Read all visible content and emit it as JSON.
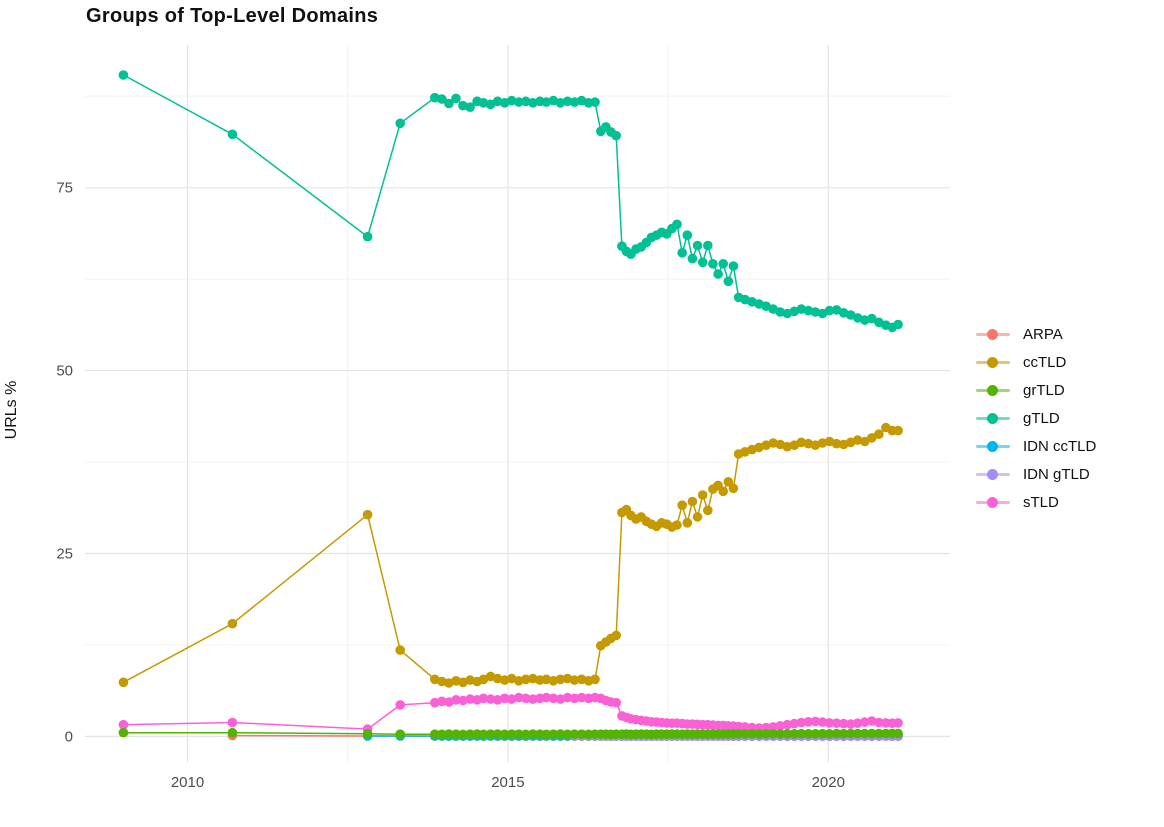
{
  "chart_data": {
    "type": "line",
    "title": "Groups of Top-Level Domains",
    "xlabel": "",
    "ylabel": "URLs %",
    "xlim": [
      2008.4,
      2021.9
    ],
    "ylim": [
      -3.5,
      94.5
    ],
    "x_tick_values": [
      2010,
      2015,
      2020
    ],
    "x_tick_labels": [
      "2010",
      "2015",
      "2020"
    ],
    "x_minor_gridlines": [
      2012.5,
      2017.5
    ],
    "y_tick_values": [
      0,
      25,
      50,
      75
    ],
    "y_tick_labels": [
      "0",
      "25",
      "50",
      "75"
    ],
    "y_minor_gridlines": [
      12.5,
      37.5,
      62.5,
      87.5
    ],
    "grid": "major+minor",
    "legend_position": "right",
    "axis_text_color": "#4d4d4d",
    "major_grid_color": "#e4e4e4",
    "minor_grid_color": "#f0f0f0",
    "x_dense": [
      2013.86,
      2013.97,
      2014.08,
      2014.19,
      2014.3,
      2014.41,
      2014.52,
      2014.62,
      2014.73,
      2014.84,
      2014.95,
      2015.06,
      2015.17,
      2015.28,
      2015.39,
      2015.5,
      2015.6,
      2015.71,
      2015.82,
      2015.93,
      2016.04,
      2016.15,
      2016.26,
      2016.36,
      2016.45,
      2016.53,
      2016.61,
      2016.69,
      2016.78,
      2016.85,
      2016.92,
      2017.0,
      2017.08,
      2017.16,
      2017.24,
      2017.32,
      2017.4,
      2017.48,
      2017.56,
      2017.64,
      2017.72,
      2017.8,
      2017.88,
      2017.96,
      2018.04,
      2018.12,
      2018.2,
      2018.28,
      2018.36,
      2018.44,
      2018.52,
      2018.6,
      2018.7,
      2018.81,
      2018.92,
      2019.03,
      2019.14,
      2019.25,
      2019.36,
      2019.47,
      2019.58,
      2019.69,
      2019.8,
      2019.91,
      2020.02,
      2020.13,
      2020.24,
      2020.35,
      2020.46,
      2020.57,
      2020.68,
      2020.79,
      2020.9,
      2021.0,
      2021.09
    ],
    "series": [
      {
        "name": "ARPA",
        "color": "#F8766D",
        "zorder": 1,
        "points_early": [
          [
            2010.7,
            0.12
          ],
          [
            2012.81,
            0.05
          ],
          [
            2013.32,
            0.04
          ]
        ],
        "y_dense": 0.03
      },
      {
        "name": "ccTLD",
        "color": "#C49A00",
        "zorder": 4,
        "points_early": [
          [
            2009.0,
            7.4
          ],
          [
            2010.7,
            15.4
          ],
          [
            2012.81,
            30.3
          ],
          [
            2013.32,
            11.8
          ]
        ],
        "y_dense": [
          7.8,
          7.5,
          7.3,
          7.6,
          7.4,
          7.7,
          7.5,
          7.8,
          8.2,
          7.9,
          7.7,
          7.9,
          7.6,
          7.8,
          7.9,
          7.7,
          7.8,
          7.6,
          7.8,
          7.9,
          7.7,
          7.8,
          7.6,
          7.8,
          12.4,
          12.9,
          13.4,
          13.8,
          30.6,
          31.0,
          30.2,
          29.7,
          30.0,
          29.4,
          29.0,
          28.7,
          29.2,
          29.0,
          28.6,
          28.9,
          31.6,
          29.2,
          32.1,
          30.0,
          33.0,
          30.9,
          33.8,
          34.3,
          33.5,
          34.8,
          33.9,
          38.6,
          38.9,
          39.2,
          39.5,
          39.8,
          40.1,
          39.9,
          39.6,
          39.8,
          40.2,
          40.0,
          39.8,
          40.1,
          40.3,
          40.0,
          39.9,
          40.2,
          40.5,
          40.3,
          40.8,
          41.3,
          42.2,
          41.8,
          41.8
        ]
      },
      {
        "name": "grTLD",
        "color": "#53B400",
        "zorder": 7,
        "points_early": [
          [
            2009.0,
            0.5
          ],
          [
            2010.7,
            0.5
          ],
          [
            2012.81,
            0.35
          ],
          [
            2013.32,
            0.3
          ]
        ],
        "y_dense": [
          0.3,
          0.28,
          0.32,
          0.3,
          0.27,
          0.3,
          0.32,
          0.29,
          0.3,
          0.31,
          0.28,
          0.3,
          0.3,
          0.29,
          0.31,
          0.3,
          0.28,
          0.3,
          0.31,
          0.29,
          0.3,
          0.3,
          0.29,
          0.3,
          0.3,
          0.3,
          0.29,
          0.3,
          0.3,
          0.31,
          0.29,
          0.3,
          0.32,
          0.3,
          0.29,
          0.31,
          0.3,
          0.3,
          0.32,
          0.31,
          0.3,
          0.32,
          0.31,
          0.33,
          0.32,
          0.31,
          0.33,
          0.32,
          0.34,
          0.33,
          0.34,
          0.34,
          0.33,
          0.35,
          0.34,
          0.36,
          0.35,
          0.34,
          0.36,
          0.35,
          0.37,
          0.36,
          0.35,
          0.37,
          0.36,
          0.38,
          0.37,
          0.38,
          0.39,
          0.38,
          0.4,
          0.39,
          0.4,
          0.41,
          0.4
        ]
      },
      {
        "name": "gTLD",
        "color": "#00C094",
        "zorder": 5,
        "points_early": [
          [
            2009.0,
            90.4
          ],
          [
            2010.7,
            82.3
          ],
          [
            2012.81,
            68.3
          ],
          [
            2013.32,
            83.8
          ]
        ],
        "y_dense": [
          87.3,
          87.1,
          86.5,
          87.2,
          86.2,
          86.0,
          86.8,
          86.6,
          86.4,
          86.8,
          86.6,
          86.9,
          86.7,
          86.8,
          86.6,
          86.8,
          86.7,
          86.9,
          86.6,
          86.8,
          86.7,
          86.9,
          86.6,
          86.7,
          82.7,
          83.3,
          82.6,
          82.1,
          67.0,
          66.3,
          65.9,
          66.6,
          66.9,
          67.5,
          68.2,
          68.5,
          68.9,
          68.7,
          69.4,
          70.0,
          66.1,
          68.5,
          65.3,
          67.1,
          64.8,
          67.1,
          64.6,
          63.2,
          64.6,
          62.2,
          64.3,
          60.0,
          59.7,
          59.4,
          59.1,
          58.8,
          58.4,
          58.0,
          57.8,
          58.1,
          58.4,
          58.2,
          58.0,
          57.8,
          58.2,
          58.3,
          57.9,
          57.6,
          57.2,
          56.9,
          57.1,
          56.6,
          56.2,
          55.9,
          56.3
        ]
      },
      {
        "name": "IDN ccTLD",
        "color": "#00B6EB",
        "zorder": 2,
        "points_early": [
          [
            2012.81,
            0.06
          ],
          [
            2013.32,
            0.06
          ]
        ],
        "y_dense": 0.05
      },
      {
        "name": "IDN gTLD",
        "color": "#A58AFF",
        "zorder": 3,
        "points_early": [],
        "y_dense": {
          "from": 20,
          "value": 0.05
        }
      },
      {
        "name": "sTLD",
        "color": "#FB61D7",
        "zorder": 6,
        "points_early": [
          [
            2009.0,
            1.6
          ],
          [
            2010.7,
            1.9
          ],
          [
            2012.81,
            1.0
          ],
          [
            2013.32,
            4.3
          ]
        ],
        "y_dense": [
          4.6,
          4.8,
          4.7,
          5.0,
          4.9,
          5.1,
          5.0,
          5.2,
          5.1,
          5.0,
          5.2,
          5.1,
          5.3,
          5.2,
          5.1,
          5.2,
          5.3,
          5.2,
          5.1,
          5.3,
          5.2,
          5.3,
          5.2,
          5.3,
          5.2,
          4.9,
          4.7,
          4.6,
          2.8,
          2.6,
          2.4,
          2.3,
          2.2,
          2.1,
          2.0,
          1.95,
          1.9,
          1.85,
          1.8,
          1.8,
          1.75,
          1.7,
          1.7,
          1.65,
          1.6,
          1.6,
          1.55,
          1.5,
          1.5,
          1.45,
          1.4,
          1.35,
          1.3,
          1.2,
          1.15,
          1.2,
          1.3,
          1.45,
          1.6,
          1.75,
          1.9,
          2.0,
          2.05,
          1.95,
          1.85,
          1.8,
          1.75,
          1.7,
          1.8,
          1.95,
          2.1,
          1.9,
          1.85,
          1.8,
          1.85
        ]
      }
    ]
  }
}
